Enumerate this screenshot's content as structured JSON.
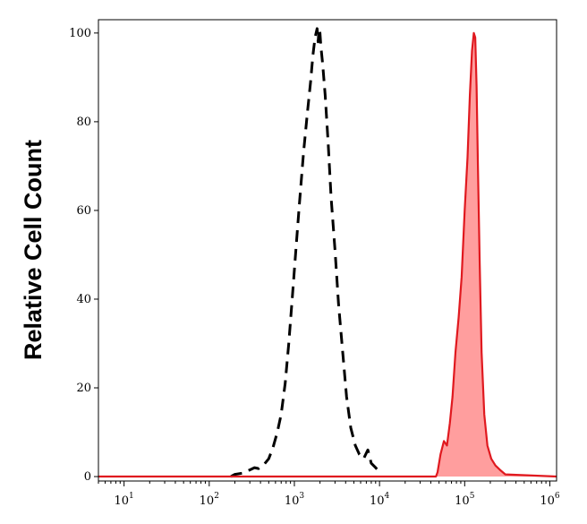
{
  "chart_data": {
    "type": "histogram",
    "title": "",
    "xlabel": "",
    "ylabel": "Relative Cell Count",
    "x_scale": "log",
    "xlim": [
      5,
      1200000
    ],
    "ylim": [
      -1,
      103
    ],
    "grid": false,
    "legend": "none",
    "y_ticks": [
      0,
      20,
      40,
      60,
      80,
      100
    ],
    "x_ticks": [
      {
        "base": "10",
        "exp": "1",
        "value": 10
      },
      {
        "base": "10",
        "exp": "2",
        "value": 100
      },
      {
        "base": "10",
        "exp": "3",
        "value": 1000
      },
      {
        "base": "10",
        "exp": "4",
        "value": 10000
      },
      {
        "base": "10",
        "exp": "5",
        "value": 100000
      },
      {
        "base": "10",
        "exp": "6",
        "value": 1000000
      }
    ],
    "series": [
      {
        "style": "dashed",
        "color": "#000000",
        "fill": "none",
        "x": [
          180,
          200,
          250,
          300,
          340,
          380,
          430,
          500,
          560,
          630,
          700,
          780,
          860,
          950,
          1050,
          1150,
          1280,
          1420,
          1550,
          1650,
          1750,
          1850,
          1900,
          1950,
          2000,
          2050,
          2150,
          2300,
          2500,
          2700,
          3000,
          3300,
          3700,
          4100,
          4600,
          5200,
          5800,
          6500,
          7300,
          8000,
          8500,
          9000,
          9500,
          10000
        ],
        "y": [
          0,
          0.5,
          0.8,
          1.5,
          2,
          1.8,
          2.5,
          4,
          6.5,
          10,
          14,
          21,
          30,
          41,
          52,
          62,
          73,
          82,
          89,
          95,
          99,
          101,
          98,
          101,
          100,
          97,
          93,
          86,
          75,
          63,
          51,
          39,
          28,
          18,
          11,
          7,
          5,
          4,
          6,
          3,
          2.5,
          2,
          1.5,
          1.5
        ]
      },
      {
        "style": "solid",
        "color": "#e0191f",
        "fill": "#ff9e9e",
        "x": [
          5,
          46000,
          48000,
          52000,
          57000,
          62000,
          67000,
          72000,
          78000,
          85000,
          92000,
          100000,
          108000,
          115000,
          122000,
          128000,
          133000,
          138000,
          143000,
          150000,
          158000,
          170000,
          185000,
          205000,
          230000,
          260000,
          300000,
          1200000
        ],
        "y": [
          0,
          0,
          1,
          5,
          8,
          7,
          12,
          18,
          28,
          36,
          45,
          60,
          72,
          86,
          96,
          100,
          99,
          88,
          70,
          48,
          28,
          14,
          7,
          4,
          2.5,
          1.5,
          0.5,
          0
        ]
      }
    ]
  }
}
